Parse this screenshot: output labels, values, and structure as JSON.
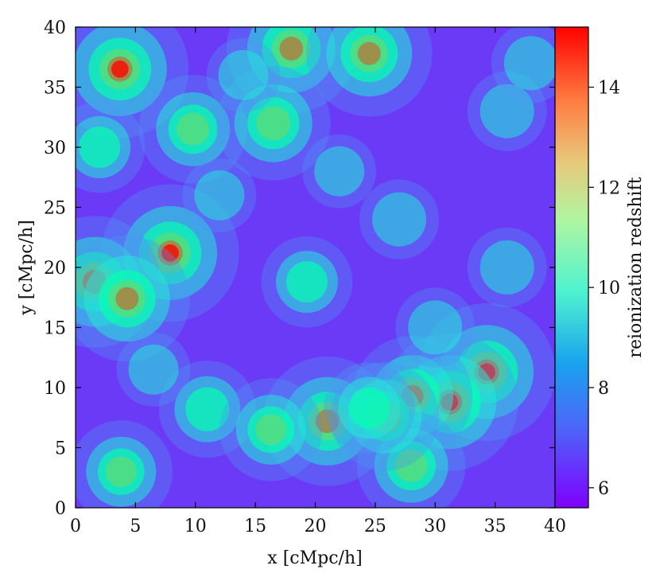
{
  "chart_data": {
    "type": "heatmap",
    "title": "",
    "xlabel": "x [cMpc/h]",
    "ylabel": "y [cMpc/h]",
    "xlim": [
      0,
      40
    ],
    "ylim": [
      0,
      40
    ],
    "xticks": [
      "0",
      "5",
      "10",
      "15",
      "20",
      "25",
      "30",
      "35",
      "40"
    ],
    "yticks": [
      "0",
      "5",
      "10",
      "15",
      "20",
      "25",
      "30",
      "35",
      "40"
    ],
    "colorbar": {
      "label": "reionization redshift",
      "range": [
        5.6,
        15.2
      ],
      "ticks": [
        "6",
        "8",
        "10",
        "12",
        "14"
      ],
      "colormap": "rainbow"
    },
    "hotspots": [
      {
        "x": 3.7,
        "y": 36.5,
        "z": 15.0
      },
      {
        "x": 18.0,
        "y": 38.2,
        "z": 14.3
      },
      {
        "x": 24.5,
        "y": 37.8,
        "z": 14.0
      },
      {
        "x": 9.8,
        "y": 31.5,
        "z": 12.5
      },
      {
        "x": 16.5,
        "y": 32.0,
        "z": 13.0
      },
      {
        "x": 7.9,
        "y": 21.2,
        "z": 15.0
      },
      {
        "x": 1.6,
        "y": 18.8,
        "z": 14.5
      },
      {
        "x": 4.3,
        "y": 17.4,
        "z": 14.0
      },
      {
        "x": 34.3,
        "y": 11.3,
        "z": 15.0
      },
      {
        "x": 31.2,
        "y": 8.8,
        "z": 15.0
      },
      {
        "x": 21.0,
        "y": 7.2,
        "z": 14.3
      },
      {
        "x": 28.1,
        "y": 9.3,
        "z": 13.5
      },
      {
        "x": 11.0,
        "y": 8.2,
        "z": 11.5
      },
      {
        "x": 16.3,
        "y": 6.5,
        "z": 12.0
      },
      {
        "x": 3.8,
        "y": 3.0,
        "z": 12.0
      },
      {
        "x": 28.0,
        "y": 3.5,
        "z": 12.5
      },
      {
        "x": 25.8,
        "y": 7.6,
        "z": 12.5
      },
      {
        "x": 19.3,
        "y": 18.8,
        "z": 11.0
      },
      {
        "x": 24.5,
        "y": 8.3,
        "z": 11.0
      },
      {
        "x": 2.0,
        "y": 30.0,
        "z": 11.0
      },
      {
        "x": 30.0,
        "y": 15.0,
        "z": 10.0
      },
      {
        "x": 36.0,
        "y": 33.0,
        "z": 10.0
      },
      {
        "x": 12.0,
        "y": 26.0,
        "z": 9.5
      },
      {
        "x": 27.0,
        "y": 24.0,
        "z": 10.0
      },
      {
        "x": 38.0,
        "y": 37.0,
        "z": 10.0
      },
      {
        "x": 6.5,
        "y": 11.5,
        "z": 9.5
      },
      {
        "x": 14.0,
        "y": 36.0,
        "z": 9.5
      },
      {
        "x": 36.0,
        "y": 20.0,
        "z": 10.0
      },
      {
        "x": 22.0,
        "y": 28.0,
        "z": 9.5
      }
    ]
  }
}
